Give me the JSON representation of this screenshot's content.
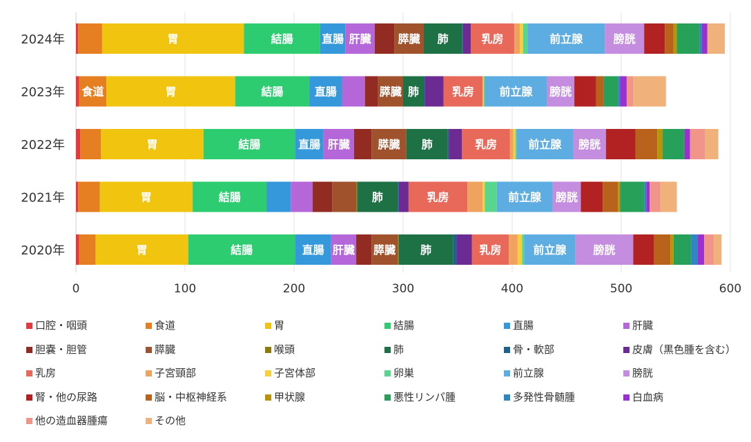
{
  "chart_data": {
    "type": "bar",
    "orientation": "horizontal",
    "stacked": true,
    "title": "",
    "xlabel": "",
    "ylabel": "",
    "xlim": [
      0,
      600
    ],
    "xticks": [
      "0",
      "100",
      "200",
      "300",
      "400",
      "500",
      "600"
    ],
    "grid": "vertical",
    "legend_position": "bottom",
    "categories": [
      "2024年",
      "2023年",
      "2022年",
      "2021年",
      "2020年"
    ],
    "series": [
      {
        "name": "口腔・咽頭",
        "color": "#e03a3e",
        "values": [
          2,
          3,
          4,
          2,
          3
        ]
      },
      {
        "name": "食道",
        "color": "#e67e22",
        "values": [
          22,
          25,
          19,
          20,
          15
        ]
      },
      {
        "name": "胃",
        "color": "#f1c40f",
        "values": [
          130,
          118,
          94,
          85,
          85
        ]
      },
      {
        "name": "結腸",
        "color": "#2ecc71",
        "values": [
          70,
          68,
          84,
          68,
          98
        ]
      },
      {
        "name": "直腸",
        "color": "#3498db",
        "values": [
          23,
          30,
          26,
          22,
          33
        ]
      },
      {
        "name": "肝臓",
        "color": "#b566d9",
        "values": [
          27,
          21,
          28,
          20,
          23
        ]
      },
      {
        "name": "胆嚢・胆管",
        "color": "#922b21",
        "values": [
          18,
          12,
          16,
          18,
          14
        ]
      },
      {
        "name": "膵臓",
        "color": "#a0522d",
        "values": [
          27,
          23,
          32,
          22,
          24
        ]
      },
      {
        "name": "喉頭",
        "color": "#8e7c0a",
        "values": [
          0,
          0,
          0,
          1,
          1
        ]
      },
      {
        "name": "肺",
        "color": "#1e7145",
        "values": [
          35,
          19,
          38,
          37,
          50
        ]
      },
      {
        "name": "骨・軟部",
        "color": "#1f618d",
        "values": [
          1,
          1,
          1,
          1,
          3
        ]
      },
      {
        "name": "皮膚（黒色腫を含む）",
        "color": "#6c2a93",
        "values": [
          7,
          17,
          12,
          9,
          14
        ]
      },
      {
        "name": "乳房",
        "color": "#e8685a",
        "values": [
          40,
          36,
          44,
          54,
          34
        ]
      },
      {
        "name": "子宮頸部",
        "color": "#f0a35e",
        "values": [
          5,
          0,
          3,
          14,
          8
        ]
      },
      {
        "name": "子宮体部",
        "color": "#f4d03f",
        "values": [
          3,
          1,
          2,
          2,
          4
        ]
      },
      {
        "name": "卵巣",
        "color": "#58d68d",
        "values": [
          4,
          1,
          1,
          11,
          2
        ]
      },
      {
        "name": "前立腺",
        "color": "#5dade2",
        "values": [
          71,
          57,
          52,
          51,
          47
        ]
      },
      {
        "name": "膀胱",
        "color": "#c48de0",
        "values": [
          36,
          25,
          30,
          26,
          53
        ]
      },
      {
        "name": "腎・他の尿路",
        "color": "#b22222",
        "values": [
          19,
          20,
          27,
          20,
          19
        ]
      },
      {
        "name": "脳・中枢神経系",
        "color": "#b8621b",
        "values": [
          8,
          7,
          20,
          14,
          15
        ]
      },
      {
        "name": "甲状腺",
        "color": "#b7950b",
        "values": [
          3,
          0,
          5,
          2,
          3
        ]
      },
      {
        "name": "悪性リンパ腫",
        "color": "#27a05a",
        "values": [
          21,
          13,
          20,
          22,
          16
        ]
      },
      {
        "name": "多発性骨髄腫",
        "color": "#2e86c1",
        "values": [
          2,
          2,
          0,
          2,
          6
        ]
      },
      {
        "name": "白血病",
        "color": "#9b30d0",
        "values": [
          5,
          6,
          5,
          3,
          6
        ]
      },
      {
        "name": "他の造血器腫瘍",
        "color": "#f1948a",
        "values": [
          0,
          6,
          14,
          10,
          9
        ]
      },
      {
        "name": "その他",
        "color": "#f0b27a",
        "values": [
          16,
          30,
          12,
          15,
          7
        ]
      }
    ]
  }
}
